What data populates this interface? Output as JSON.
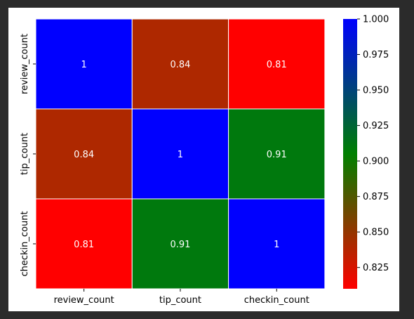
{
  "chart_data": {
    "type": "heatmap",
    "title": "",
    "xlabel": "",
    "ylabel": "",
    "rows": [
      "review_count",
      "tip_count",
      "checkin_count"
    ],
    "columns": [
      "review_count",
      "tip_count",
      "checkin_count"
    ],
    "values": [
      [
        1,
        0.84,
        0.81
      ],
      [
        0.84,
        1,
        0.91
      ],
      [
        0.81,
        0.91,
        1
      ]
    ],
    "cell_labels": [
      [
        "1",
        "0.84",
        "0.81"
      ],
      [
        "0.84",
        "1",
        "0.91"
      ],
      [
        "0.81",
        "0.91",
        "1"
      ]
    ],
    "colormap": {
      "min": 0.81,
      "max": 1.0,
      "stops": [
        {
          "value": 0.81,
          "color": "#ff0000"
        },
        {
          "value": 0.905,
          "color": "#008000"
        },
        {
          "value": 1.0,
          "color": "#0000ff"
        }
      ]
    },
    "colorbar": {
      "ticks": [
        0.825,
        0.85,
        0.875,
        0.9,
        0.925,
        0.95,
        0.975,
        1.0
      ],
      "tick_labels": [
        "0.825",
        "0.850",
        "0.875",
        "0.900",
        "0.925",
        "0.950",
        "0.975",
        "1.000"
      ]
    },
    "annotation_color": "#ffffff",
    "gridlines": "white cell borders",
    "legend": "colorbar-right"
  }
}
